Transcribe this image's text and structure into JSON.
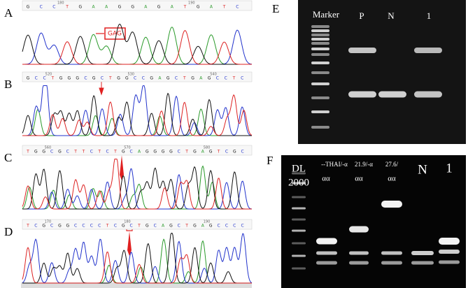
{
  "chromatograms": [
    {
      "label": "A",
      "sequence": "GCCTGAAGGAGATGATC",
      "ruler": [
        "180",
        "190"
      ],
      "annotation": "GAG"
    },
    {
      "label": "B",
      "sequence": "GCCTGGGCGCTGGCCGAGCTGAGCCTC",
      "ruler": [
        "520",
        "530",
        "540"
      ]
    },
    {
      "label": "C",
      "sequence": "TGGCGCTTCTCTGCAGGGGCTGAGTCGC",
      "ruler": [
        "560",
        "570",
        "580"
      ]
    },
    {
      "label": "D",
      "sequence": "TCGCGGCCCCTCGCTGCAGCTGAGCCCC",
      "ruler": [
        "170",
        "180",
        "190"
      ]
    }
  ],
  "gel_e": {
    "label": "E",
    "lanes": [
      "Marker",
      "P",
      "N",
      "1"
    ]
  },
  "gel_f": {
    "label": "F",
    "ladder": [
      "DL",
      "2000"
    ],
    "lanes": [
      {
        "top": "--THAI/-α",
        "bottom": "αα"
      },
      {
        "top": "21.9/-α",
        "bottom": "αα"
      },
      {
        "top": "27.6/",
        "bottom": "αα"
      },
      {
        "top": "N"
      },
      {
        "top": "1"
      }
    ]
  }
}
